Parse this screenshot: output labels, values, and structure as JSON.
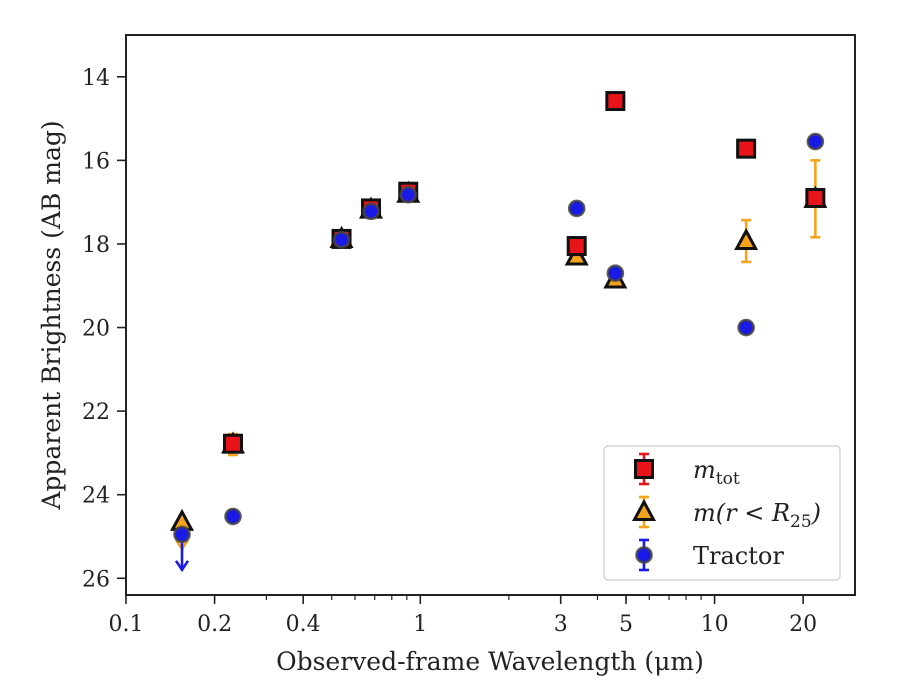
{
  "chart_data": {
    "type": "scatter",
    "xlabel": "Observed-frame Wavelength (μm)",
    "ylabel": "Apparent Brightness (AB mag)",
    "xscale": "log",
    "xlim": [
      0.1,
      30
    ],
    "ylim": [
      26.4,
      13.0
    ],
    "y_inverted": true,
    "x_ticks": [
      0.1,
      0.2,
      0.4,
      1,
      3,
      5,
      10,
      20
    ],
    "x_tick_labels": [
      "0.1",
      "0.2",
      "0.4",
      "1",
      "3",
      "5",
      "10",
      "20"
    ],
    "y_ticks": [
      14,
      16,
      18,
      20,
      22,
      24,
      26
    ],
    "y_tick_labels": [
      "14",
      "16",
      "18",
      "20",
      "22",
      "24",
      "26"
    ],
    "grid": false,
    "legend_position": "bottom-right",
    "series": [
      {
        "name_main": "m",
        "name_sub": "tot",
        "marker": "square",
        "color": "#e8141a",
        "errcolor": "#e8141a",
        "points": [
          {
            "x": 0.231,
            "y": 22.78,
            "err": 0.15
          },
          {
            "x": 0.54,
            "y": 17.88,
            "err": 0.1
          },
          {
            "x": 0.68,
            "y": 17.15,
            "err": 0.1
          },
          {
            "x": 0.91,
            "y": 16.75,
            "err": 0.1
          },
          {
            "x": 3.4,
            "y": 18.05,
            "err": 0.1
          },
          {
            "x": 4.6,
            "y": 14.58,
            "err": 0.1
          },
          {
            "x": 12.8,
            "y": 15.72,
            "err": 0.1
          },
          {
            "x": 22.0,
            "y": 16.9,
            "err": 0.1
          }
        ]
      },
      {
        "name_main": "m(r < R",
        "name_sub": "25",
        "name_tail": ")",
        "marker": "triangle",
        "color": "#f5a31a",
        "errcolor": "#f5a31a",
        "points": [
          {
            "x": 0.155,
            "y": 24.65,
            "err": 0.3,
            "upper_limit": true
          },
          {
            "x": 0.231,
            "y": 22.8,
            "err": 0.25
          },
          {
            "x": 0.54,
            "y": 17.88,
            "err": 0.1
          },
          {
            "x": 0.68,
            "y": 17.18,
            "err": 0.1
          },
          {
            "x": 0.91,
            "y": 16.8,
            "err": 0.1
          },
          {
            "x": 3.4,
            "y": 18.3,
            "err": 0.1
          },
          {
            "x": 4.6,
            "y": 18.85,
            "err": 0.1
          },
          {
            "x": 12.8,
            "y": 17.93,
            "err": 0.5
          },
          {
            "x": 22.0,
            "y": 16.92,
            "err": 0.92
          }
        ]
      },
      {
        "name_main": "Tractor",
        "marker": "circle",
        "color": "#1a1ae8",
        "errcolor": "#1a1ae8",
        "points": [
          {
            "x": 0.155,
            "y": 24.95,
            "err": 0.4,
            "upper_limit": true
          },
          {
            "x": 0.231,
            "y": 24.52,
            "err": 0.08
          },
          {
            "x": 0.54,
            "y": 17.9,
            "err": 0.08
          },
          {
            "x": 0.68,
            "y": 17.22,
            "err": 0.08
          },
          {
            "x": 0.91,
            "y": 16.82,
            "err": 0.08
          },
          {
            "x": 3.4,
            "y": 17.15,
            "err": 0.05
          },
          {
            "x": 4.6,
            "y": 18.7,
            "err": 0.05
          },
          {
            "x": 12.8,
            "y": 20.0,
            "err": 0.05
          },
          {
            "x": 22.0,
            "y": 15.55,
            "err": 0.05
          }
        ]
      }
    ]
  }
}
